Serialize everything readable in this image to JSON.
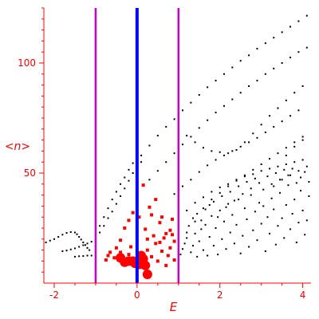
{
  "chart_data": {
    "type": "scatter",
    "xlabel": "E",
    "ylabel": "<n>",
    "xlim": [
      -2.25,
      4.2
    ],
    "ylim": [
      0,
      125
    ],
    "x_ticks": [
      -2,
      0,
      2,
      4
    ],
    "y_ticks": [
      50,
      100
    ],
    "colors": {
      "axis": "#ff0000",
      "black_points": "#000000",
      "red_points": "#ff0000",
      "center_line": "#0000ff",
      "side_lines": "#cc00cc"
    },
    "vertical_lines": [
      {
        "x": -1.0,
        "color": "#cc00cc"
      },
      {
        "x": 0.0,
        "color": "#0000ff"
      },
      {
        "x": 1.0,
        "color": "#cc00cc"
      }
    ],
    "series": [
      {
        "marker": "black-dots",
        "points": [
          [
            -2.2,
            18.5
          ],
          [
            -2.1,
            19.3
          ],
          [
            -2.0,
            20.0
          ],
          [
            -1.9,
            21.0
          ],
          [
            -1.8,
            22.0
          ],
          [
            -1.7,
            22.8
          ],
          [
            -1.6,
            23.2
          ],
          [
            -1.5,
            23.0
          ],
          [
            -1.45,
            22.2
          ],
          [
            -1.4,
            21.0
          ],
          [
            -1.35,
            19.8
          ],
          [
            -1.3,
            18.5
          ],
          [
            -1.25,
            17.3
          ],
          [
            -1.2,
            16.0
          ],
          [
            -1.15,
            15.0
          ],
          [
            -1.8,
            14.5
          ],
          [
            -1.7,
            14.8
          ],
          [
            -1.6,
            15.3
          ],
          [
            -1.5,
            15.8
          ],
          [
            -1.4,
            16.5
          ],
          [
            -1.3,
            17.2
          ],
          [
            -1.2,
            18.0
          ],
          [
            -1.1,
            18.8
          ],
          [
            -1.0,
            19.5
          ],
          [
            -1.5,
            12.0
          ],
          [
            -1.4,
            12.2
          ],
          [
            -1.3,
            12.3
          ],
          [
            -1.2,
            12.5
          ],
          [
            -1.1,
            12.5
          ],
          [
            -1.0,
            12.3
          ],
          [
            -0.9,
            23.0
          ],
          [
            -0.8,
            26.0
          ],
          [
            -0.7,
            29.5
          ],
          [
            -0.6,
            32.5
          ],
          [
            -0.5,
            36.0
          ],
          [
            -0.4,
            39.5
          ],
          [
            -0.3,
            43.0
          ],
          [
            -0.2,
            46.5
          ],
          [
            -0.1,
            50.0
          ],
          [
            0.0,
            53.5
          ],
          [
            0.1,
            55.0
          ],
          [
            -0.9,
            26.0
          ],
          [
            -0.8,
            30.0
          ],
          [
            -0.7,
            34.0
          ],
          [
            -0.6,
            38.0
          ],
          [
            -0.5,
            41.5
          ],
          [
            -0.4,
            45.0
          ],
          [
            -0.3,
            48.0
          ],
          [
            -0.2,
            51.5
          ],
          [
            -0.1,
            54.5
          ],
          [
            0.1,
            58.0
          ],
          [
            0.3,
            62.5
          ],
          [
            0.5,
            67.0
          ],
          [
            0.7,
            71.0
          ],
          [
            0.9,
            74.5
          ],
          [
            1.1,
            78.5
          ],
          [
            1.3,
            82.0
          ],
          [
            1.5,
            85.5
          ],
          [
            1.7,
            89.0
          ],
          [
            1.9,
            92.0
          ],
          [
            2.1,
            95.0
          ],
          [
            2.3,
            98.0
          ],
          [
            2.5,
            101.0
          ],
          [
            2.7,
            103.5
          ],
          [
            2.9,
            106.5
          ],
          [
            3.1,
            109.0
          ],
          [
            3.3,
            111.5
          ],
          [
            3.5,
            114.0
          ],
          [
            3.7,
            116.5
          ],
          [
            3.9,
            119.0
          ],
          [
            4.1,
            121.5
          ],
          [
            0.3,
            47.0
          ],
          [
            0.5,
            51.0
          ],
          [
            0.7,
            55.0
          ],
          [
            0.9,
            59.0
          ],
          [
            1.1,
            63.0
          ],
          [
            1.3,
            66.5
          ],
          [
            1.5,
            70.5
          ],
          [
            1.7,
            74.0
          ],
          [
            1.9,
            77.5
          ],
          [
            2.1,
            80.5
          ],
          [
            2.3,
            83.5
          ],
          [
            2.5,
            86.5
          ],
          [
            2.7,
            89.5
          ],
          [
            2.9,
            92.0
          ],
          [
            3.1,
            95.0
          ],
          [
            3.3,
            97.5
          ],
          [
            3.5,
            100.0
          ],
          [
            3.7,
            102.5
          ],
          [
            3.9,
            105.0
          ],
          [
            4.1,
            107.0
          ],
          [
            1.0,
            70.0
          ],
          [
            1.2,
            67.0
          ],
          [
            1.4,
            64.0
          ],
          [
            1.6,
            61.5
          ],
          [
            1.8,
            60.0
          ],
          [
            2.0,
            59.5
          ],
          [
            2.2,
            59.0
          ],
          [
            2.4,
            60.5
          ],
          [
            2.6,
            64.0
          ],
          [
            2.8,
            68.0
          ],
          [
            3.0,
            72.0
          ],
          [
            3.2,
            76.0
          ],
          [
            3.4,
            79.5
          ],
          [
            3.6,
            83.0
          ],
          [
            3.8,
            86.5
          ],
          [
            4.0,
            89.5
          ],
          [
            0.9,
            40.5
          ],
          [
            1.1,
            44.0
          ],
          [
            1.3,
            47.0
          ],
          [
            1.5,
            50.5
          ],
          [
            1.7,
            53.5
          ],
          [
            1.9,
            56.0
          ],
          [
            2.1,
            58.0
          ],
          [
            2.3,
            60.0
          ],
          [
            2.5,
            62.0
          ],
          [
            2.7,
            64.0
          ],
          [
            2.9,
            66.0
          ],
          [
            3.1,
            68.5
          ],
          [
            3.3,
            71.0
          ],
          [
            3.5,
            73.5
          ],
          [
            3.7,
            76.0
          ],
          [
            3.9,
            78.5
          ],
          [
            1.2,
            23.0
          ],
          [
            1.4,
            28.0
          ],
          [
            1.6,
            34.0
          ],
          [
            1.8,
            38.0
          ],
          [
            2.0,
            41.0
          ],
          [
            2.2,
            44.0
          ],
          [
            2.4,
            46.5
          ],
          [
            2.6,
            49.0
          ],
          [
            2.8,
            51.5
          ],
          [
            3.0,
            54.0
          ],
          [
            3.2,
            56.5
          ],
          [
            3.4,
            59.0
          ],
          [
            3.6,
            61.5
          ],
          [
            3.8,
            64.0
          ],
          [
            4.0,
            66.5
          ],
          [
            1.0,
            30.0
          ],
          [
            1.2,
            33.0
          ],
          [
            1.4,
            36.5
          ],
          [
            1.6,
            39.0
          ],
          [
            1.8,
            41.5
          ],
          [
            2.0,
            43.5
          ],
          [
            2.2,
            45.0
          ],
          [
            2.4,
            47.0
          ],
          [
            2.6,
            48.5
          ],
          [
            2.8,
            49.5
          ],
          [
            3.0,
            51.0
          ],
          [
            3.2,
            52.0
          ],
          [
            3.4,
            53.0
          ],
          [
            3.6,
            54.0
          ],
          [
            3.8,
            55.0
          ],
          [
            4.0,
            56.0
          ],
          [
            3.3,
            44.0
          ],
          [
            3.5,
            47.0
          ],
          [
            3.7,
            49.0
          ],
          [
            3.9,
            51.0
          ],
          [
            4.1,
            53.0
          ],
          [
            3.6,
            58.0
          ],
          [
            3.8,
            62.0
          ],
          [
            4.0,
            65.0
          ],
          [
            1.05,
            13.0
          ],
          [
            1.1,
            15.5
          ],
          [
            1.15,
            18.0
          ],
          [
            1.2,
            20.5
          ],
          [
            1.3,
            14.0
          ],
          [
            1.35,
            17.0
          ],
          [
            1.4,
            22.5
          ],
          [
            1.45,
            12.0
          ],
          [
            1.5,
            19.0
          ],
          [
            1.55,
            24.5
          ],
          [
            1.6,
            15.0
          ],
          [
            1.65,
            26.5
          ],
          [
            1.7,
            12.5
          ],
          [
            1.75,
            21.0
          ],
          [
            1.8,
            30.5
          ],
          [
            1.85,
            17.0
          ],
          [
            1.9,
            25.0
          ],
          [
            1.95,
            13.0
          ],
          [
            2.0,
            33.0
          ],
          [
            2.05,
            20.0
          ],
          [
            2.1,
            28.0
          ],
          [
            2.15,
            15.5
          ],
          [
            2.2,
            36.0
          ],
          [
            2.25,
            23.0
          ],
          [
            2.3,
            31.0
          ],
          [
            2.35,
            18.0
          ],
          [
            2.4,
            26.5
          ],
          [
            2.45,
            38.0
          ],
          [
            2.5,
            13.5
          ],
          [
            2.55,
            21.5
          ],
          [
            2.6,
            34.0
          ],
          [
            2.65,
            29.0
          ],
          [
            2.7,
            16.5
          ],
          [
            2.75,
            40.0
          ],
          [
            2.8,
            24.0
          ],
          [
            2.85,
            32.5
          ],
          [
            2.9,
            19.5
          ],
          [
            2.95,
            36.5
          ],
          [
            3.0,
            27.0
          ],
          [
            3.05,
            42.5
          ],
          [
            3.1,
            14.5
          ],
          [
            3.15,
            30.0
          ],
          [
            3.2,
            22.5
          ],
          [
            3.25,
            38.5
          ],
          [
            3.3,
            33.5
          ],
          [
            3.35,
            17.5
          ],
          [
            3.4,
            26.0
          ],
          [
            3.45,
            41.0
          ],
          [
            3.5,
            29.5
          ],
          [
            3.55,
            20.5
          ],
          [
            3.6,
            35.5
          ],
          [
            3.65,
            44.5
          ],
          [
            3.7,
            24.5
          ],
          [
            3.75,
            31.5
          ],
          [
            3.8,
            38.0
          ],
          [
            3.85,
            18.5
          ],
          [
            3.9,
            27.5
          ],
          [
            3.95,
            42.0
          ],
          [
            4.0,
            33.0
          ],
          [
            4.05,
            22.0
          ],
          [
            4.1,
            28.5
          ],
          [
            4.15,
            39.5
          ],
          [
            1.25,
            26.0
          ],
          [
            1.35,
            29.5
          ],
          [
            1.45,
            31.5
          ],
          [
            1.55,
            28.5
          ],
          [
            1.65,
            33.5
          ],
          [
            1.75,
            35.5
          ],
          [
            1.85,
            37.0
          ],
          [
            1.95,
            30.0
          ],
          [
            2.05,
            39.5
          ],
          [
            2.15,
            34.5
          ],
          [
            2.25,
            41.5
          ],
          [
            2.35,
            37.5
          ],
          [
            2.45,
            44.0
          ],
          [
            2.55,
            40.5
          ],
          [
            2.65,
            46.0
          ],
          [
            2.75,
            43.0
          ],
          [
            2.85,
            47.5
          ],
          [
            2.95,
            45.5
          ],
          [
            3.05,
            35.0
          ],
          [
            3.15,
            48.5
          ],
          [
            3.25,
            45.0
          ],
          [
            3.35,
            50.0
          ],
          [
            3.45,
            47.0
          ],
          [
            3.55,
            51.5
          ],
          [
            3.65,
            49.0
          ],
          [
            3.75,
            52.0
          ],
          [
            3.85,
            45.5
          ],
          [
            3.95,
            48.0
          ],
          [
            4.05,
            50.5
          ],
          [
            4.15,
            46.0
          ]
        ]
      },
      {
        "marker": "red-squares",
        "points": [
          [
            -0.7,
            12.5
          ],
          [
            -0.55,
            11.5
          ],
          [
            -0.45,
            10.5
          ],
          [
            -0.4,
            14.0
          ],
          [
            -0.35,
            12.0
          ],
          [
            -0.25,
            9.5
          ],
          [
            -0.2,
            13.0
          ],
          [
            -0.15,
            16.5
          ],
          [
            -0.1,
            11.0
          ],
          [
            -0.05,
            9.0
          ],
          [
            0.05,
            10.5
          ],
          [
            0.12,
            13.5
          ],
          [
            0.2,
            9.5
          ],
          [
            0.25,
            15.0
          ],
          [
            0.35,
            12.0
          ],
          [
            0.45,
            18.0
          ],
          [
            0.5,
            10.0
          ],
          [
            0.6,
            14.5
          ],
          [
            0.65,
            20.5
          ],
          [
            0.7,
            8.0
          ],
          [
            0.75,
            12.5
          ],
          [
            0.8,
            16.0
          ],
          [
            0.85,
            22.0
          ],
          [
            0.9,
            10.5
          ],
          [
            -0.3,
            25.0
          ],
          [
            -0.2,
            28.5
          ],
          [
            0.2,
            24.5
          ],
          [
            0.35,
            31.0
          ],
          [
            0.55,
            27.5
          ],
          [
            0.15,
            44.5
          ],
          [
            0.45,
            38.0
          ],
          [
            0.3,
            34.5
          ],
          [
            -0.1,
            32.0
          ],
          [
            0.05,
            30.0
          ],
          [
            0.6,
            30.0
          ],
          [
            0.7,
            22.5
          ],
          [
            -0.5,
            16.0
          ],
          [
            -0.65,
            14.0
          ],
          [
            0.4,
            21.5
          ],
          [
            -0.75,
            10.5
          ],
          [
            0.9,
            19.0
          ],
          [
            0.85,
            29.0
          ],
          [
            0.55,
            18.5
          ],
          [
            0.25,
            20.0
          ],
          [
            -0.4,
            19.5
          ],
          [
            0.8,
            24.0
          ]
        ]
      },
      {
        "marker": "red-circles",
        "points": [
          [
            -0.2,
            10.0
          ],
          [
            -0.1,
            10.0
          ],
          [
            -0.05,
            9.0
          ],
          [
            0.15,
            11.0
          ],
          [
            0.2,
            8.0
          ],
          [
            -0.3,
            9.5
          ],
          [
            0.1,
            12.5
          ],
          [
            0.25,
            4.0
          ],
          [
            -0.4,
            11.5
          ],
          [
            0.05,
            8.5
          ]
        ]
      }
    ]
  }
}
